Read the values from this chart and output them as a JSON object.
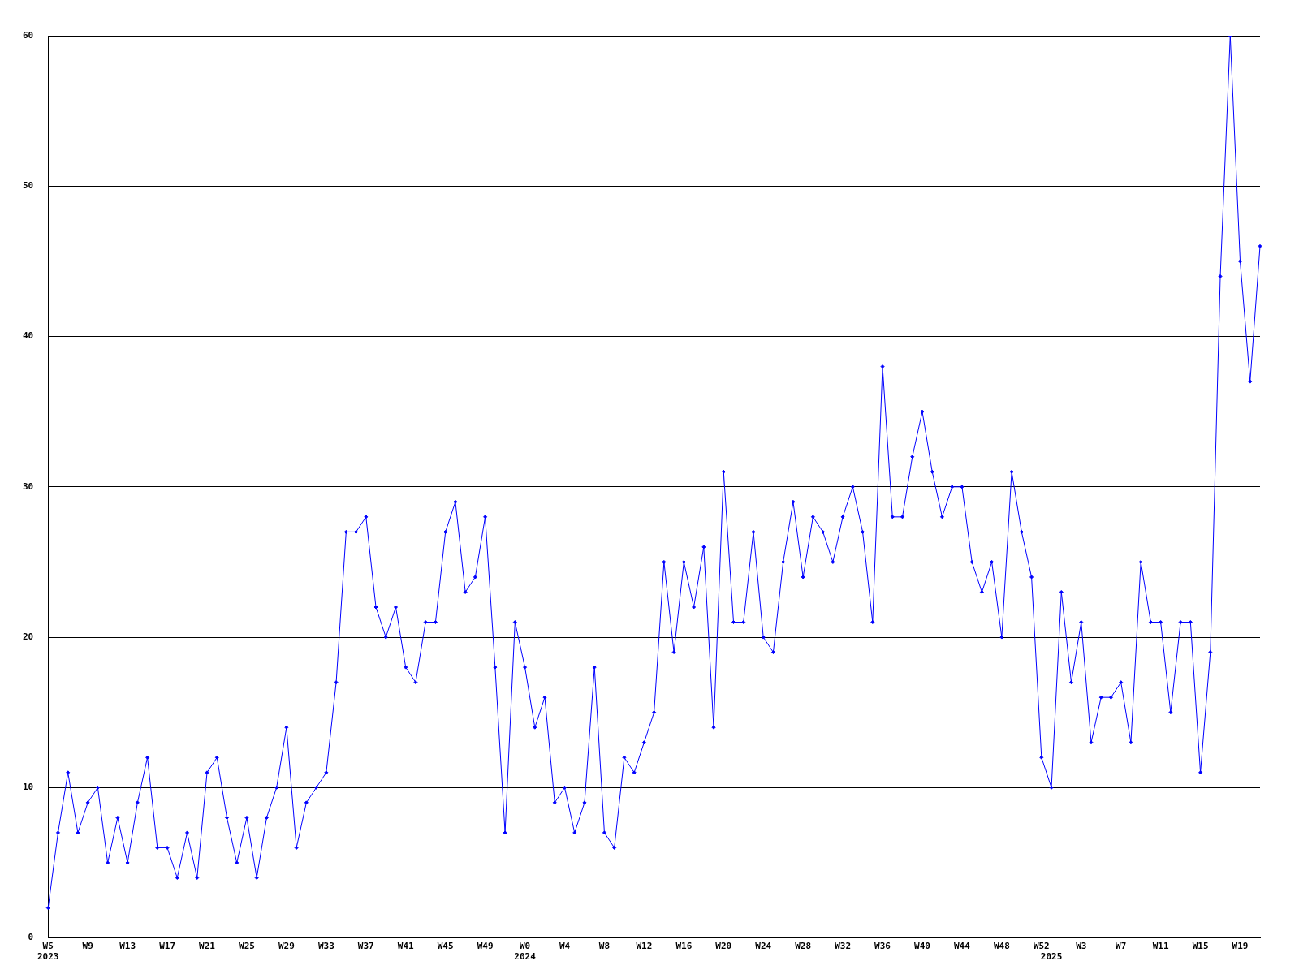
{
  "chart_data": {
    "type": "line",
    "categories": [
      "W5\n2023",
      null,
      null,
      null,
      "W9",
      null,
      null,
      null,
      "W13",
      null,
      null,
      null,
      "W17",
      null,
      null,
      null,
      "W21",
      null,
      null,
      null,
      "W25",
      null,
      null,
      null,
      "W29",
      null,
      null,
      null,
      "W33",
      null,
      null,
      null,
      "W37",
      null,
      null,
      null,
      "W41",
      null,
      null,
      null,
      "W45",
      null,
      null,
      null,
      "W49",
      null,
      null,
      null,
      "W0\n2024",
      null,
      null,
      null,
      "W4",
      null,
      null,
      null,
      "W8",
      null,
      null,
      null,
      "W12",
      null,
      null,
      null,
      "W16",
      null,
      null,
      null,
      "W20",
      null,
      null,
      null,
      "W24",
      null,
      null,
      null,
      "W28",
      null,
      null,
      null,
      "W32",
      null,
      null,
      null,
      "W36",
      null,
      null,
      null,
      "W40",
      null,
      null,
      null,
      "W44",
      null,
      null,
      null,
      "W48",
      null,
      null,
      null,
      "W52",
      "\n2025",
      null,
      null,
      "W3",
      null,
      null,
      null,
      "W7",
      null,
      null,
      null,
      "W11",
      null,
      null,
      null,
      "W15",
      null,
      null,
      null,
      "W19",
      null,
      null
    ],
    "series": [
      {
        "color": "#0000ff",
        "values": [
          2,
          7,
          11,
          7,
          9,
          10,
          5,
          8,
          5,
          9,
          12,
          6,
          6,
          4,
          7,
          4,
          11,
          12,
          8,
          5,
          8,
          4,
          8,
          10,
          14,
          6,
          9,
          10,
          11,
          17,
          27,
          27,
          28,
          22,
          20,
          22,
          18,
          17,
          21,
          21,
          27,
          29,
          23,
          24,
          28,
          18,
          7,
          21,
          18,
          14,
          16,
          9,
          10,
          7,
          9,
          18,
          7,
          6,
          12,
          11,
          13,
          15,
          25,
          19,
          25,
          22,
          26,
          14,
          31,
          21,
          21,
          27,
          20,
          19,
          25,
          29,
          24,
          28,
          27,
          25,
          28,
          30,
          27,
          21,
          38,
          28,
          28,
          32,
          35,
          31,
          28,
          30,
          30,
          25,
          23,
          25,
          20,
          31,
          27,
          24,
          12,
          10,
          23,
          17,
          21,
          13,
          16,
          16,
          17,
          13,
          25,
          21,
          21,
          15,
          21,
          21,
          11,
          19,
          44,
          60,
          45,
          37,
          46
        ]
      }
    ],
    "ylim": [
      0,
      60
    ],
    "yticks": [
      0,
      10,
      20,
      30,
      40,
      50,
      60
    ],
    "grid": "y",
    "legend": false,
    "marker": "diamond",
    "line_style": "solid"
  }
}
